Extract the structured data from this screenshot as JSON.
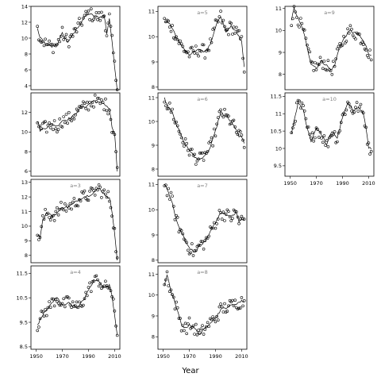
{
  "chart_data": {
    "type": "scatter",
    "xlabel": "Year",
    "ylabel": "",
    "x_range": [
      1946,
      2014
    ],
    "x_ticks": [
      1950,
      1970,
      1990,
      2010
    ],
    "panels": [
      {
        "id": "p1",
        "label": "",
        "ylim": [
          3.5,
          14
        ],
        "yticks": [
          4,
          6,
          8,
          10,
          12,
          14
        ],
        "shape": "noisy",
        "trend": [
          [
            1951,
            11.2
          ],
          [
            1953,
            10
          ],
          [
            1958,
            9.2
          ],
          [
            1962,
            8.9
          ],
          [
            1966,
            9.2
          ],
          [
            1970,
            10.6
          ],
          [
            1974,
            9.5
          ],
          [
            1978,
            10.4
          ],
          [
            1982,
            11.4
          ],
          [
            1986,
            12.4
          ],
          [
            1990,
            13.1
          ],
          [
            1994,
            12.8
          ],
          [
            1998,
            12.6
          ],
          [
            2002,
            12.9
          ],
          [
            2004,
            10.6
          ],
          [
            2006,
            12.5
          ],
          [
            2008,
            9.5
          ],
          [
            2010,
            6.5
          ],
          [
            2012,
            3.5
          ]
        ]
      },
      {
        "id": "p2",
        "label": "a=5",
        "ylim": [
          7.9,
          11.2
        ],
        "yticks": [
          8,
          9,
          10,
          11
        ],
        "shape": "noisy",
        "trend": [
          [
            1951,
            10.6
          ],
          [
            1955,
            10.5
          ],
          [
            1958,
            10.2
          ],
          [
            1962,
            9.8
          ],
          [
            1966,
            9.5
          ],
          [
            1970,
            9.3
          ],
          [
            1974,
            9.4
          ],
          [
            1978,
            9.5
          ],
          [
            1982,
            9.4
          ],
          [
            1986,
            9.7
          ],
          [
            1990,
            10.4
          ],
          [
            1994,
            10.8
          ],
          [
            1998,
            10.2
          ],
          [
            2002,
            10.4
          ],
          [
            2006,
            10.2
          ],
          [
            2008,
            10
          ],
          [
            2010,
            9.8
          ],
          [
            2012,
            8.8
          ]
        ]
      },
      {
        "id": "p3",
        "label": "a=9",
        "ylim": [
          7.3,
          11.1
        ],
        "yticks": [
          8,
          9,
          10,
          11
        ],
        "shape": "noisy",
        "trend": [
          [
            1951,
            10.5
          ],
          [
            1953,
            11
          ],
          [
            1957,
            10.4
          ],
          [
            1960,
            10
          ],
          [
            1963,
            9.2
          ],
          [
            1966,
            8.5
          ],
          [
            1970,
            8.3
          ],
          [
            1974,
            8.6
          ],
          [
            1978,
            8.4
          ],
          [
            1981,
            8.2
          ],
          [
            1984,
            8.4
          ],
          [
            1987,
            9.1
          ],
          [
            1990,
            9.5
          ],
          [
            1993,
            9.8
          ],
          [
            1996,
            10
          ],
          [
            1999,
            9.9
          ],
          [
            2002,
            9.8
          ],
          [
            2005,
            9.6
          ],
          [
            2008,
            9.3
          ],
          [
            2010,
            8.9
          ],
          [
            2012,
            8.9
          ]
        ]
      },
      {
        "id": "p4",
        "label": "",
        "ylim": [
          5.5,
          14
        ],
        "yticks": [
          6,
          8,
          10,
          12
        ],
        "shape": "noisy",
        "trend": [
          [
            1951,
            11.1
          ],
          [
            1953,
            10.2
          ],
          [
            1958,
            10.5
          ],
          [
            1962,
            10.8
          ],
          [
            1966,
            10.6
          ],
          [
            1970,
            11.2
          ],
          [
            1974,
            11.3
          ],
          [
            1978,
            11.6
          ],
          [
            1982,
            12.2
          ],
          [
            1986,
            12.5
          ],
          [
            1990,
            12.8
          ],
          [
            1994,
            13.2
          ],
          [
            1998,
            13
          ],
          [
            2002,
            12.9
          ],
          [
            2006,
            12.4
          ],
          [
            2008,
            10.5
          ],
          [
            2010,
            9.8
          ],
          [
            2012,
            6
          ]
        ]
      },
      {
        "id": "p5",
        "label": "a=6",
        "ylim": [
          7.7,
          11.2
        ],
        "yticks": [
          8,
          9,
          10,
          11
        ],
        "shape": "noisy",
        "trend": [
          [
            1951,
            11
          ],
          [
            1953,
            10.7
          ],
          [
            1957,
            10.4
          ],
          [
            1960,
            9.9
          ],
          [
            1963,
            9.5
          ],
          [
            1966,
            9.1
          ],
          [
            1970,
            8.8
          ],
          [
            1974,
            8.5
          ],
          [
            1978,
            8.4
          ],
          [
            1982,
            8.6
          ],
          [
            1986,
            8.9
          ],
          [
            1990,
            9.6
          ],
          [
            1994,
            10.4
          ],
          [
            1998,
            10.2
          ],
          [
            2002,
            10
          ],
          [
            2006,
            9.6
          ],
          [
            2008,
            9.4
          ],
          [
            2010,
            9.3
          ],
          [
            2012,
            9.1
          ]
        ]
      },
      {
        "id": "p6",
        "label": "a=10",
        "ylim": [
          9.2,
          11.6
        ],
        "yticks": [
          9.5,
          10,
          10.5,
          11,
          11.5
        ],
        "shape": "noisy",
        "trend": [
          [
            1951,
            10.4
          ],
          [
            1953,
            10.8
          ],
          [
            1956,
            11.3
          ],
          [
            1960,
            11.1
          ],
          [
            1963,
            10.6
          ],
          [
            1966,
            10.2
          ],
          [
            1970,
            10.6
          ],
          [
            1974,
            10.4
          ],
          [
            1978,
            10.1
          ],
          [
            1982,
            10.5
          ],
          [
            1986,
            10.3
          ],
          [
            1990,
            10.9
          ],
          [
            1994,
            11.3
          ],
          [
            1998,
            11.1
          ],
          [
            2002,
            11.2
          ],
          [
            2006,
            11
          ],
          [
            2008,
            10.6
          ],
          [
            2010,
            10
          ],
          [
            2012,
            10
          ]
        ]
      },
      {
        "id": "p7",
        "label": "a=3",
        "ylim": [
          7.5,
          13.2
        ],
        "yticks": [
          8,
          9,
          10,
          11,
          12,
          13
        ],
        "shape": "noisy",
        "trend": [
          [
            1951,
            9.4
          ],
          [
            1953,
            9.3
          ],
          [
            1955,
            10.4
          ],
          [
            1958,
            10.9
          ],
          [
            1962,
            10.7
          ],
          [
            1966,
            10.9
          ],
          [
            1970,
            11.3
          ],
          [
            1974,
            11.3
          ],
          [
            1978,
            11.5
          ],
          [
            1982,
            11.8
          ],
          [
            1986,
            12
          ],
          [
            1990,
            12.1
          ],
          [
            1994,
            12.3
          ],
          [
            1998,
            12.6
          ],
          [
            2002,
            12.2
          ],
          [
            2006,
            11.9
          ],
          [
            2008,
            11
          ],
          [
            2010,
            9.6
          ],
          [
            2012,
            7.6
          ]
        ]
      },
      {
        "id": "p8",
        "label": "a=7",
        "ylim": [
          7.9,
          11.2
        ],
        "yticks": [
          8,
          9,
          10,
          11
        ],
        "shape": "noisy",
        "trend": [
          [
            1951,
            11
          ],
          [
            1954,
            10.7
          ],
          [
            1957,
            10.3
          ],
          [
            1960,
            9.6
          ],
          [
            1963,
            9.2
          ],
          [
            1966,
            8.9
          ],
          [
            1970,
            8.5
          ],
          [
            1974,
            8.3
          ],
          [
            1978,
            8.6
          ],
          [
            1982,
            8.7
          ],
          [
            1986,
            9.1
          ],
          [
            1990,
            9.5
          ],
          [
            1994,
            9.9
          ],
          [
            1998,
            9.8
          ],
          [
            2002,
            9.7
          ],
          [
            2006,
            9.9
          ],
          [
            2008,
            9.5
          ],
          [
            2010,
            9.6
          ],
          [
            2012,
            9.6
          ]
        ]
      },
      {
        "id": "p9",
        "label": "a=4",
        "ylim": [
          8.4,
          11.8
        ],
        "yticks": [
          8.5,
          9.5,
          10.5,
          11.5
        ],
        "shape": "noisy",
        "trend": [
          [
            1951,
            9.4
          ],
          [
            1955,
            9.8
          ],
          [
            1958,
            10
          ],
          [
            1962,
            10.3
          ],
          [
            1966,
            10.5
          ],
          [
            1970,
            10.2
          ],
          [
            1974,
            10.3
          ],
          [
            1978,
            10.2
          ],
          [
            1982,
            10.1
          ],
          [
            1986,
            10.4
          ],
          [
            1990,
            10.8
          ],
          [
            1994,
            11.2
          ],
          [
            1998,
            11.2
          ],
          [
            2002,
            10.9
          ],
          [
            2006,
            11
          ],
          [
            2008,
            10.6
          ],
          [
            2010,
            9.8
          ],
          [
            2012,
            9
          ]
        ]
      },
      {
        "id": "p10",
        "label": "a=8",
        "ylim": [
          7.4,
          11.4
        ],
        "yticks": [
          8,
          9,
          10,
          11
        ],
        "shape": "noisy",
        "trend": [
          [
            1951,
            10.5
          ],
          [
            1953,
            11
          ],
          [
            1955,
            10.4
          ],
          [
            1958,
            9.8
          ],
          [
            1961,
            9.2
          ],
          [
            1964,
            8.6
          ],
          [
            1967,
            8.4
          ],
          [
            1970,
            8.6
          ],
          [
            1974,
            8.4
          ],
          [
            1978,
            8.1
          ],
          [
            1982,
            8.4
          ],
          [
            1986,
            8.7
          ],
          [
            1990,
            8.9
          ],
          [
            1994,
            9.3
          ],
          [
            1998,
            9.4
          ],
          [
            2002,
            9.5
          ],
          [
            2006,
            9.6
          ],
          [
            2010,
            9.7
          ],
          [
            2012,
            9.7
          ]
        ]
      }
    ]
  }
}
